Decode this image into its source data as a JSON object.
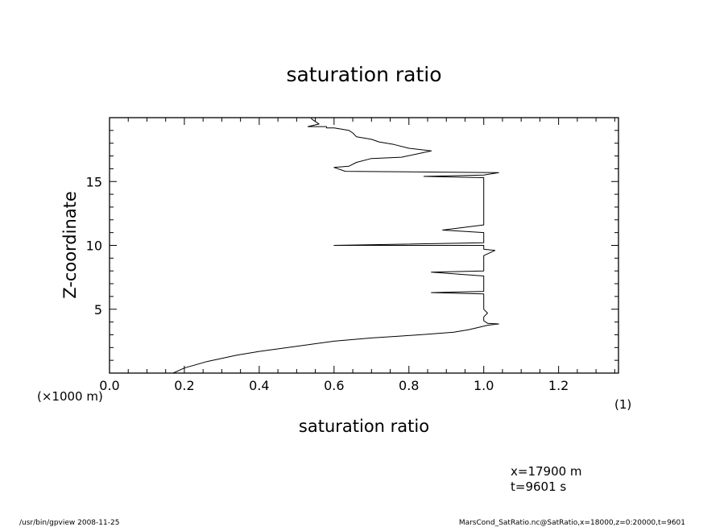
{
  "footer": {
    "left": "/usr/bin/gpview   2008-11-25",
    "right": "MarsCond_SatRatio.nc@SatRatio,x=18000,z=0:20000,t=9601"
  },
  "info": {
    "x_line": "x=17900  m",
    "t_line": "t=9601  s"
  },
  "chart_data": {
    "type": "line",
    "title": "saturation ratio",
    "xlabel": "saturation ratio",
    "ylabel": "Z-coordinate",
    "x_unit": "(1)",
    "y_unit": "(×1000 m)",
    "xlim": [
      0.0,
      1.36
    ],
    "ylim": [
      0,
      20
    ],
    "grid": false,
    "x_ticks": [
      {
        "value": 0.0,
        "label": "0.0"
      },
      {
        "value": 0.2,
        "label": "0.2"
      },
      {
        "value": 0.4,
        "label": "0.4"
      },
      {
        "value": 0.6,
        "label": "0.6"
      },
      {
        "value": 0.8,
        "label": "0.8"
      },
      {
        "value": 1.0,
        "label": "1.0"
      },
      {
        "value": 1.2,
        "label": "1.2"
      }
    ],
    "y_ticks": [
      {
        "value": 5,
        "label": "5"
      },
      {
        "value": 10,
        "label": "10"
      },
      {
        "value": 15,
        "label": "15"
      }
    ],
    "series": [
      {
        "points": [
          [
            0.17,
            0.0
          ],
          [
            0.2,
            0.4
          ],
          [
            0.26,
            0.9
          ],
          [
            0.34,
            1.4
          ],
          [
            0.4,
            1.7
          ],
          [
            0.5,
            2.1
          ],
          [
            0.6,
            2.5
          ],
          [
            0.7,
            2.75
          ],
          [
            0.78,
            2.9
          ],
          [
            0.85,
            3.05
          ],
          [
            0.92,
            3.2
          ],
          [
            0.96,
            3.4
          ],
          [
            0.99,
            3.6
          ],
          [
            1.01,
            3.75
          ],
          [
            1.04,
            3.85
          ],
          [
            1.01,
            3.9
          ],
          [
            1.0,
            4.1
          ],
          [
            1.0,
            4.4
          ],
          [
            1.01,
            4.7
          ],
          [
            1.0,
            5.0
          ],
          [
            1.0,
            5.6
          ],
          [
            1.0,
            6.2
          ],
          [
            0.86,
            6.3
          ],
          [
            1.0,
            6.4
          ],
          [
            1.0,
            7.0
          ],
          [
            1.0,
            7.6
          ],
          [
            0.86,
            7.9
          ],
          [
            1.0,
            8.0
          ],
          [
            1.0,
            8.8
          ],
          [
            1.0,
            9.2
          ],
          [
            1.03,
            9.6
          ],
          [
            1.0,
            9.7
          ],
          [
            1.0,
            10.0
          ],
          [
            0.6,
            10.0
          ],
          [
            1.0,
            10.2
          ],
          [
            1.0,
            11.0
          ],
          [
            0.89,
            11.2
          ],
          [
            1.0,
            11.6
          ],
          [
            1.0,
            12.5
          ],
          [
            1.0,
            13.5
          ],
          [
            1.0,
            14.5
          ],
          [
            1.0,
            15.3
          ],
          [
            0.84,
            15.4
          ],
          [
            1.0,
            15.5
          ],
          [
            1.04,
            15.7
          ],
          [
            0.63,
            15.8
          ],
          [
            0.6,
            16.1
          ],
          [
            0.64,
            16.2
          ],
          [
            0.66,
            16.5
          ],
          [
            0.7,
            16.8
          ],
          [
            0.78,
            16.9
          ],
          [
            0.86,
            17.4
          ],
          [
            0.8,
            17.6
          ],
          [
            0.76,
            17.9
          ],
          [
            0.72,
            18.1
          ],
          [
            0.7,
            18.3
          ],
          [
            0.66,
            18.5
          ],
          [
            0.65,
            18.8
          ],
          [
            0.64,
            19.0
          ],
          [
            0.62,
            19.1
          ],
          [
            0.6,
            19.2
          ],
          [
            0.58,
            19.2
          ],
          [
            0.58,
            19.3
          ],
          [
            0.53,
            19.3
          ],
          [
            0.56,
            19.5
          ],
          [
            0.55,
            19.7
          ],
          [
            0.54,
            19.9
          ],
          [
            0.54,
            20.0
          ]
        ]
      }
    ]
  }
}
